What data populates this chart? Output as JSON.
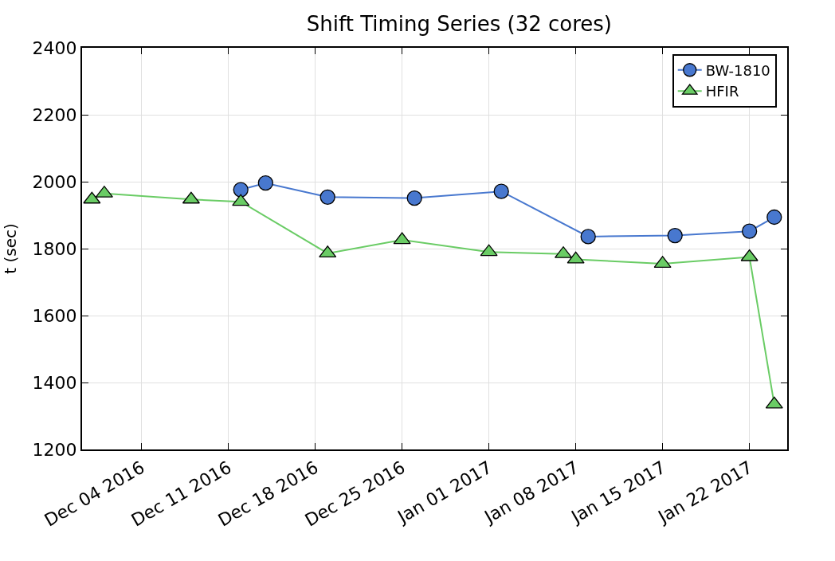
{
  "chart_data": {
    "type": "line",
    "title": "Shift Timing Series (32 cores)",
    "ylabel": "t (sec)",
    "xlim": [
      "2016-11-29T05:00",
      "2017-01-25T01:00"
    ],
    "xticks": [
      {
        "value": "2016-12-04",
        "label": "Dec 04 2016"
      },
      {
        "value": "2016-12-11",
        "label": "Dec 11 2016"
      },
      {
        "value": "2016-12-18",
        "label": "Dec 18 2016"
      },
      {
        "value": "2016-12-25",
        "label": "Dec 25 2016"
      },
      {
        "value": "2017-01-01",
        "label": "Jan 01 2017"
      },
      {
        "value": "2017-01-08",
        "label": "Jan 08 2017"
      },
      {
        "value": "2017-01-15",
        "label": "Jan 15 2017"
      },
      {
        "value": "2017-01-22",
        "label": "Jan 22 2017"
      }
    ],
    "ylim": [
      1200,
      2400
    ],
    "yticks": [
      1200,
      1400,
      1600,
      1800,
      2000,
      2200,
      2400
    ],
    "grid": true,
    "legend": "top right",
    "series": [
      {
        "name": "BW-1810",
        "color": "#4878cf",
        "marker": "circle",
        "x": [
          "2016-12-12",
          "2016-12-14",
          "2016-12-19",
          "2016-12-26",
          "2017-01-02",
          "2017-01-09",
          "2017-01-16",
          "2017-01-22",
          "2017-01-24"
        ],
        "values": [
          1976,
          1996,
          1954,
          1951,
          1971,
          1836,
          1839,
          1852,
          1894
        ]
      },
      {
        "name": "HFIR",
        "color": "#6acc65",
        "marker": "triangle",
        "x": [
          "2016-11-30",
          "2016-12-01",
          "2016-12-08",
          "2016-12-12",
          "2016-12-19",
          "2016-12-25",
          "2017-01-01",
          "2017-01-07",
          "2017-01-08",
          "2017-01-15",
          "2017-01-22",
          "2017-01-24"
        ],
        "values": [
          1947,
          1965,
          1947,
          1940,
          1786,
          1826,
          1790,
          1784,
          1768,
          1755,
          1775,
          1335
        ]
      }
    ]
  }
}
